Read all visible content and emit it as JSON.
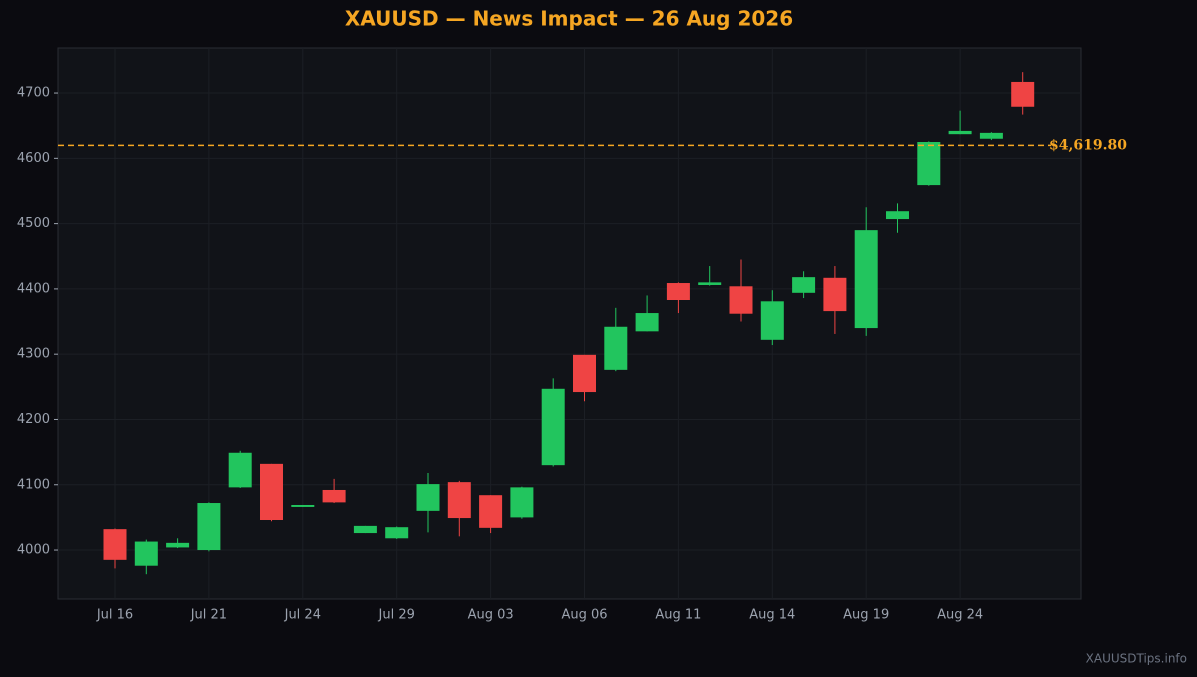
{
  "chart_data": {
    "type": "candlestick",
    "title": "XAUUSD — News Impact — 26 Aug 2026",
    "categories": [
      "Jul 16",
      null,
      null,
      "Jul 21",
      null,
      null,
      "Jul 24",
      null,
      null,
      "Jul 29",
      null,
      null,
      "Aug 03",
      null,
      null,
      "Aug 06",
      null,
      null,
      "Aug 11",
      null,
      null,
      "Aug 14",
      null,
      null,
      "Aug 19",
      null,
      null,
      "Aug 24",
      null,
      null
    ],
    "open": [
      4032,
      3976,
      4004,
      4000,
      4096,
      4132,
      4066,
      4092,
      4026,
      4018,
      4060,
      4104,
      4084,
      4050,
      4130,
      4299,
      4276,
      4335,
      4409,
      4406,
      4404,
      4322,
      4394,
      4417,
      4340,
      4507,
      4559,
      4637,
      4630,
      4717
    ],
    "high": [
      4033,
      4016,
      4018,
      4073,
      4152,
      4132,
      4069,
      4109,
      4037,
      4036,
      4118,
      4106,
      4084,
      4097,
      4263,
      4299,
      4371,
      4390,
      4410,
      4435,
      4445,
      4398,
      4427,
      4435,
      4525,
      4531,
      4626,
      4673,
      4640,
      4732
    ],
    "low": [
      3972,
      3963,
      4003,
      3998,
      4095,
      4044,
      4066,
      4072,
      4026,
      4017,
      4027,
      4021,
      4026,
      4048,
      4128,
      4228,
      4274,
      4335,
      4363,
      4405,
      4350,
      4314,
      4386,
      4331,
      4328,
      4486,
      4558,
      4637,
      4628,
      4667
    ],
    "close": [
      3985,
      4013,
      4011,
      4072,
      4149,
      4046,
      4069,
      4073,
      4037,
      4035,
      4101,
      4049,
      4034,
      4096,
      4247,
      4242,
      4342,
      4363,
      4383,
      4410,
      4362,
      4381,
      4418,
      4366,
      4490,
      4519,
      4625,
      4642,
      4639,
      4679
    ],
    "up_color": "#22c55e",
    "down_color": "#ef4444",
    "ylim": [
      3925,
      4769
    ],
    "yticks": [
      4000,
      4100,
      4200,
      4300,
      4400,
      4500,
      4600,
      4700
    ],
    "grid": true,
    "reference_line": {
      "value": 4619.8,
      "label": "$4,619.80",
      "color": "#f5a623"
    },
    "watermark": "XAUUSDTips.info"
  }
}
